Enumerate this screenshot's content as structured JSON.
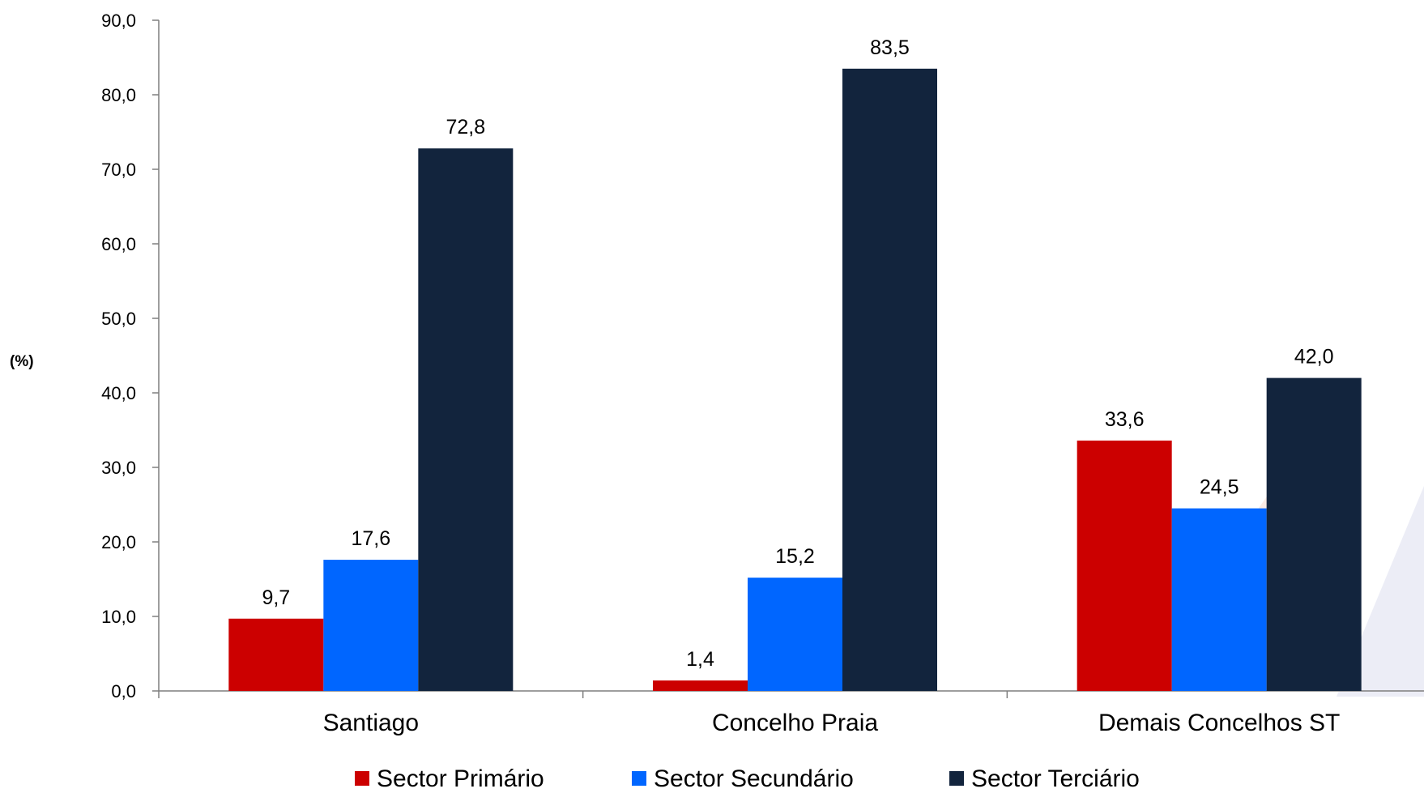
{
  "chart_data": {
    "type": "bar",
    "ylabel": "(%)",
    "categories": [
      "Santiago",
      "Concelho Praia",
      "Demais Concelhos ST"
    ],
    "series": [
      {
        "name": "Sector Primário",
        "color": "#cc0000",
        "values": [
          9.7,
          1.4,
          33.6
        ],
        "labels": [
          "9,7",
          "1,4",
          "33,6"
        ]
      },
      {
        "name": "Sector Secundário",
        "color": "#0066ff",
        "values": [
          17.6,
          15.2,
          24.5
        ],
        "labels": [
          "17,6",
          "15,2",
          "24,5"
        ]
      },
      {
        "name": "Sector Terciário",
        "color": "#12243d",
        "values": [
          72.8,
          83.5,
          42.0
        ],
        "labels": [
          "72,8",
          "83,5",
          "42,0"
        ]
      }
    ],
    "ylim": [
      0,
      90
    ],
    "yticks": [
      "0,0",
      "10,0",
      "20,0",
      "30,0",
      "40,0",
      "50,0",
      "60,0",
      "70,0",
      "80,0",
      "90,0"
    ],
    "grid": false,
    "legend_position": "bottom"
  }
}
